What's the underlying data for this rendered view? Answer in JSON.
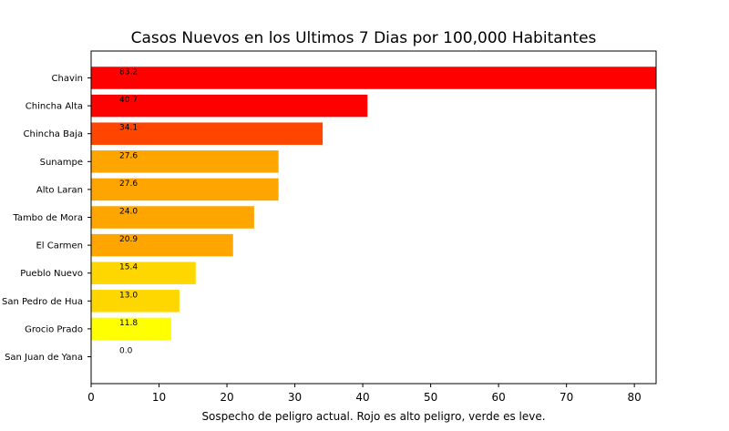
{
  "chart_data": {
    "type": "bar",
    "orientation": "horizontal",
    "title": "Casos Nuevos en los Ultimos 7 Dias por 100,000 Habitantes",
    "xlabel": "Sospecho de peligro actual. Rojo es alto peligro, verde es leve.",
    "ylabel": "",
    "categories": [
      "Chavin",
      "Chincha Alta",
      "Chincha Baja",
      "Sunampe",
      "Alto Laran",
      "Tambo de Mora",
      "El Carmen",
      "Pueblo Nuevo",
      "San Pedro de Hua",
      "Grocio Prado",
      "San Juan de Yana"
    ],
    "values": [
      83.2,
      40.7,
      34.1,
      27.6,
      27.6,
      24.0,
      20.9,
      15.4,
      13.0,
      11.8,
      0.0
    ],
    "data_labels": [
      "83.2",
      "40.7",
      "34.1",
      "27.6",
      "27.6",
      "24.0",
      "20.9",
      "15.4",
      "13.0",
      "11.8",
      "0.0"
    ],
    "colors": [
      "#ff0000",
      "#ff0000",
      "#ff4500",
      "#ffa500",
      "#ffa500",
      "#ffa500",
      "#ffa500",
      "#ffd700",
      "#ffd700",
      "#ffff00",
      "#ffff00"
    ],
    "xlim": [
      0,
      83.2
    ],
    "xticks": [
      0,
      10,
      20,
      30,
      40,
      50,
      60,
      70,
      80
    ],
    "grid": false
  }
}
